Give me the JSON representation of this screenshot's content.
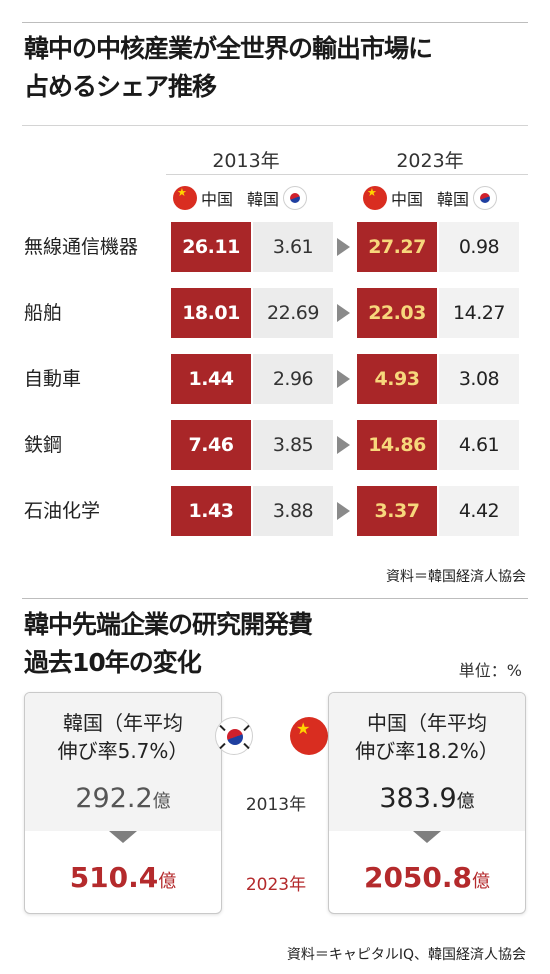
{
  "section1": {
    "title_line1": "韓中の中核産業が全世界の輸出市場に",
    "title_line2": "占めるシェア推移",
    "source": "資料＝韓国経済人協会"
  },
  "section2": {
    "title_line1": "韓中先端企業の研究開発費",
    "title_line2": "過去10年の変化",
    "unit": "単位：%",
    "source": "資料＝キャピタルIQ、韓国経済人協会",
    "korea": {
      "name_line1": "韓国（年平均",
      "name_line2": "伸び率5.7%）",
      "value_2013": "292.2",
      "value_2023": "510.4",
      "unit_suffix": "億"
    },
    "china": {
      "name_line1": "中国（年平均",
      "name_line2": "伸び率18.2%）",
      "value_2013": "383.9",
      "value_2023": "2050.8",
      "unit_suffix": "億"
    },
    "year_2013": "2013年",
    "year_2023": "2023年"
  },
  "colors": {
    "china_cell": "#a92628",
    "china_2023_text": "#f7d77c",
    "korea_cell": "#ececec",
    "highlight_red": "#b42a2c"
  },
  "chart_data": [
    {
      "type": "table",
      "title": "韓中の中核産業が全世界の輸出市場に占めるシェア推移",
      "years": [
        "2013年",
        "2023年"
      ],
      "legend": {
        "china": "中国",
        "korea": "韓国"
      },
      "rows": [
        {
          "label": "無線通信機器",
          "china_2013": "26.11",
          "korea_2013": "3.61",
          "china_2023": "27.27",
          "korea_2023": "0.98"
        },
        {
          "label": "船舶",
          "china_2013": "18.01",
          "korea_2013": "22.69",
          "china_2023": "22.03",
          "korea_2023": "14.27"
        },
        {
          "label": "自動車",
          "china_2013": "1.44",
          "korea_2013": "2.96",
          "china_2023": "4.93",
          "korea_2023": "3.08"
        },
        {
          "label": "鉄鋼",
          "china_2013": "7.46",
          "korea_2013": "3.85",
          "china_2023": "14.86",
          "korea_2023": "4.61"
        },
        {
          "label": "石油化学",
          "china_2013": "1.43",
          "korea_2013": "3.88",
          "china_2023": "3.37",
          "korea_2023": "4.42"
        }
      ]
    },
    {
      "type": "table",
      "title": "韓中先端企業の研究開発費 過去10年の変化",
      "categories": [
        "2013年",
        "2023年"
      ],
      "series": [
        {
          "name": "韓国",
          "values": [
            292.2,
            510.4
          ]
        },
        {
          "name": "中国",
          "values": [
            383.9,
            2050.8
          ]
        }
      ]
    }
  ]
}
